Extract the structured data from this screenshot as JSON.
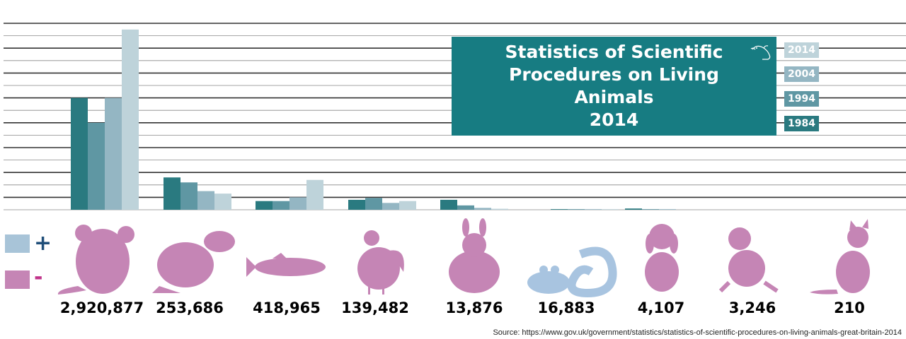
{
  "title_lines": [
    "Statistics of Scientific",
    "Procedures on Living Animals",
    "2014"
  ],
  "legend": {
    "plus": "+",
    "minus": "-",
    "plus_color": "#a8c4d8",
    "minus_color": "#c585b5"
  },
  "colors": {
    "1984": "#2a7a80",
    "1994": "#5f97a3",
    "2004": "#94b6c3",
    "2014": "#bed3da",
    "title_bg": "#177c82",
    "animal": "#c585b5",
    "amphibian": "#a8c4e0"
  },
  "year_badges": [
    "2014",
    "2004",
    "1994",
    "1984"
  ],
  "chart_data": {
    "type": "bar",
    "title": "Statistics of Scientific Procedures on Living Animals 2014",
    "categories": [
      "mouse",
      "rat",
      "fish",
      "bird",
      "rabbit",
      "amphibian/reptile",
      "dog",
      "primate",
      "cat"
    ],
    "series": [
      {
        "name": "1984",
        "values": [
          9,
          2.6,
          0.7,
          0.8,
          0.8,
          0.05,
          0.1,
          0,
          0
        ]
      },
      {
        "name": "1994",
        "values": [
          7,
          2.2,
          0.7,
          0.95,
          0.35,
          0.05,
          0.05,
          0,
          0
        ]
      },
      {
        "name": "2004",
        "values": [
          9,
          1.5,
          1.0,
          0.55,
          0.15,
          0.05,
          0.05,
          0,
          0
        ]
      },
      {
        "name": "2014",
        "values": [
          14.5,
          1.3,
          2.4,
          0.7,
          0.08,
          0.05,
          0,
          0,
          0
        ]
      }
    ],
    "counts_2014": [
      "2,920,877",
      "253,686",
      "418,965",
      "139,482",
      "13,876",
      "16,883",
      "4,107",
      "3,246",
      "210"
    ],
    "ylim": [
      0,
      15
    ],
    "grid": true,
    "legend_placement": "right"
  },
  "source": "Source: https://www.gov.uk/government/statistics/statistics-of-scientific-procedures-on-living-animals-great-britain-2014"
}
